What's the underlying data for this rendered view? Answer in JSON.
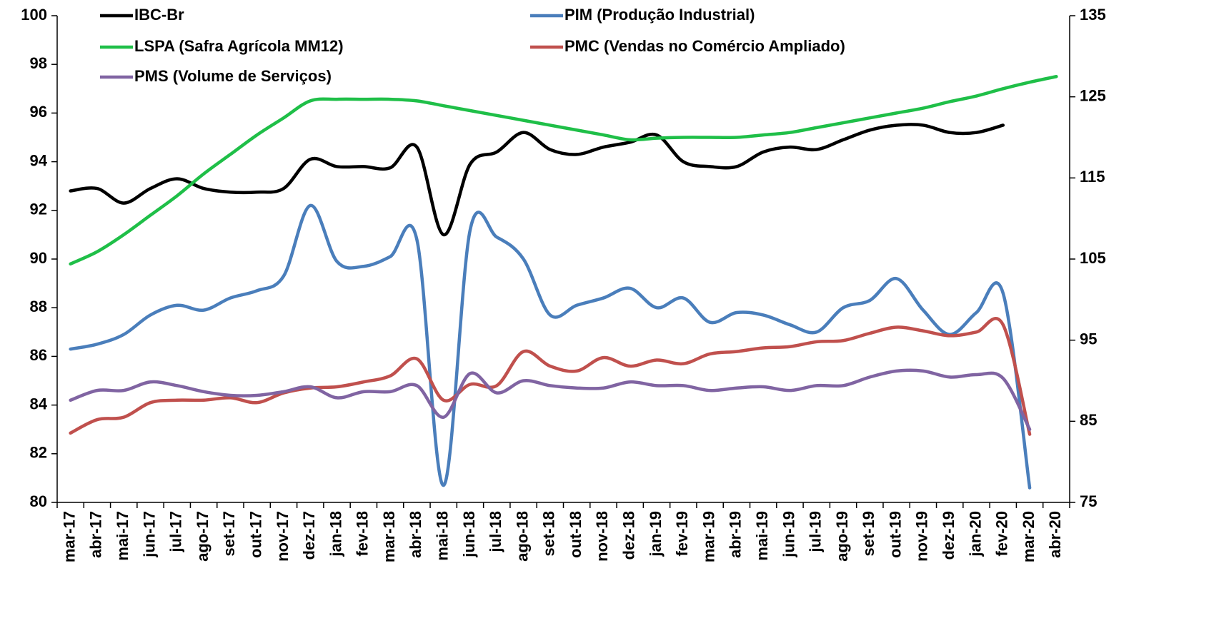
{
  "chart_data": {
    "type": "line",
    "categories": [
      "mar-17",
      "abr-17",
      "mai-17",
      "jun-17",
      "jul-17",
      "ago-17",
      "set-17",
      "out-17",
      "nov-17",
      "dez-17",
      "jan-18",
      "fev-18",
      "mar-18",
      "abr-18",
      "mai-18",
      "jun-18",
      "jul-18",
      "ago-18",
      "set-18",
      "out-18",
      "nov-18",
      "dez-18",
      "jan-19",
      "fev-19",
      "mar-19",
      "abr-19",
      "mai-19",
      "jun-19",
      "jul-19",
      "ago-19",
      "set-19",
      "out-19",
      "nov-19",
      "dez-19",
      "jan-20",
      "fev-20",
      "mar-20",
      "abr-20"
    ],
    "ylim": [
      80,
      100
    ],
    "yticks": [
      80,
      82,
      84,
      86,
      88,
      90,
      92,
      94,
      96,
      98,
      100
    ],
    "y2lim": [
      75,
      135
    ],
    "y2ticks": [
      75,
      85,
      95,
      105,
      115,
      125,
      135
    ],
    "grid": false,
    "series": [
      {
        "name": "IBC-Br",
        "color": "#000000",
        "axis": "y",
        "values": [
          92.8,
          92.9,
          92.3,
          92.9,
          93.3,
          92.9,
          92.75,
          92.75,
          92.9,
          94.1,
          93.8,
          93.8,
          93.75,
          94.6,
          91.0,
          93.9,
          94.4,
          95.2,
          94.5,
          94.3,
          94.6,
          94.8,
          95.1,
          94.0,
          93.8,
          93.8,
          94.4,
          94.6,
          94.5,
          94.9,
          95.3,
          95.5,
          95.5,
          95.2,
          95.2,
          95.5,
          null,
          null
        ]
      },
      {
        "name": "PIM (Produção Industrial)",
        "color": "#4a7ebb",
        "axis": "y2",
        "values": [
          93.9,
          94.5,
          95.7,
          98.1,
          99.3,
          98.7,
          100.2,
          101.1,
          102.9,
          111.6,
          104.7,
          104.1,
          105.3,
          107.4,
          77.1,
          108.6,
          107.7,
          105,
          98.1,
          99.3,
          100.2,
          101.4,
          99,
          100.2,
          97.2,
          98.4,
          98.1,
          96.9,
          96,
          99,
          99.9,
          102.6,
          98.7,
          95.7,
          98.4,
          100.8,
          76.8,
          null
        ]
      },
      {
        "name": "LSPA (Safra Agrícola MM12)",
        "color": "#1fbf48",
        "axis": "y2",
        "values": [
          104.4,
          105.9,
          108,
          110.4,
          112.8,
          115.5,
          117.9,
          120.3,
          122.4,
          124.5,
          124.7,
          124.7,
          124.7,
          124.5,
          123.9,
          123.3,
          122.7,
          122.1,
          121.5,
          120.9,
          120.3,
          119.7,
          119.9,
          120,
          120,
          120,
          120.3,
          120.6,
          121.2,
          121.8,
          122.4,
          123,
          123.6,
          124.4,
          125.1,
          126,
          126.8,
          127.5
        ]
      },
      {
        "name": "PMC (Vendas no Comércio Ampliado)",
        "color": "#c0504d",
        "axis": "y2",
        "values": [
          83.55,
          85.2,
          85.5,
          87.3,
          87.6,
          87.6,
          87.9,
          87.3,
          88.5,
          89.1,
          89.25,
          89.85,
          90.6,
          92.7,
          87.6,
          89.55,
          89.4,
          93.6,
          91.8,
          91.2,
          92.85,
          91.8,
          92.55,
          92.1,
          93.3,
          93.6,
          94.05,
          94.2,
          94.8,
          94.95,
          95.85,
          96.6,
          96.15,
          95.55,
          96,
          96.9,
          83.4,
          null
        ]
      },
      {
        "name": "PMS (Volume de Serviços)",
        "color": "#8064a2",
        "axis": "y2",
        "values": [
          87.6,
          88.8,
          88.8,
          89.85,
          89.4,
          88.65,
          88.2,
          88.2,
          88.65,
          89.25,
          87.9,
          88.65,
          88.65,
          89.4,
          85.5,
          90.9,
          88.5,
          90,
          89.4,
          89.1,
          89.1,
          89.85,
          89.4,
          89.4,
          88.8,
          89.1,
          89.25,
          88.8,
          89.4,
          89.4,
          90.45,
          91.2,
          91.2,
          90.45,
          90.75,
          90.3,
          84,
          null
        ]
      }
    ]
  }
}
